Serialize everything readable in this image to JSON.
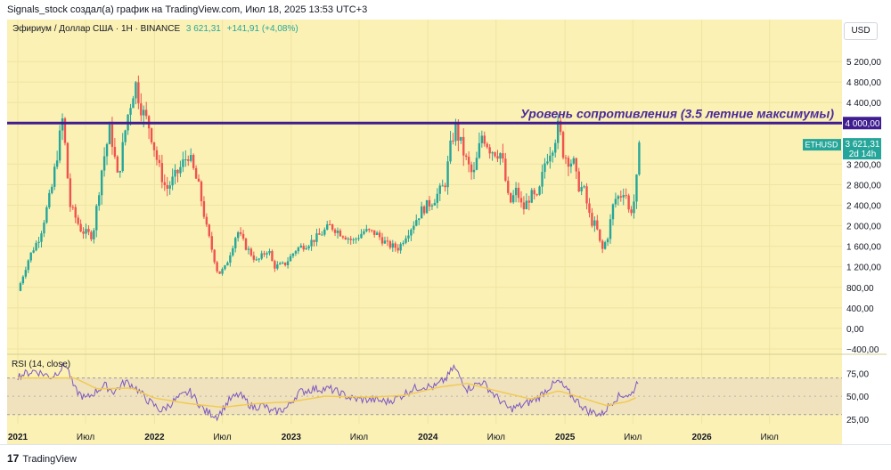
{
  "header": {
    "attribution": "Signals_stock создал(а) график на TradingView.com, Июл 18, 2025 13:53 UTC+3"
  },
  "symbol": {
    "name": "Эфириум / Доллар США · 1Н · BINANCE",
    "price": "3 621,31",
    "change": "+141,91 (+4,08%)"
  },
  "currency_button": "USD",
  "footer": {
    "brand_mark": "17",
    "brand": "TradingView"
  },
  "colors": {
    "background": "#fbf1b5",
    "up": "#26a69a",
    "down": "#ef5350",
    "resistance": "#3f1d8f",
    "rsi_line": "#7e57c2",
    "rsi_ma": "#f2c94c"
  },
  "chart_data": [
    {
      "type": "candlestick",
      "series_name": "ETHUSD",
      "annotation": "Уровень сопротивления (3.5 летние максимумы)",
      "resistance_level": 4000,
      "resistance_label": "4 000,00",
      "last_price_label": "3 621,31",
      "last_price": 3621.31,
      "countdown_label": "2d 14h",
      "ticker_label": "ETHUSD",
      "ylim": [
        -400,
        5600
      ],
      "y_ticks": [
        -400,
        0,
        400,
        800,
        1200,
        1600,
        2000,
        2400,
        2800,
        3200,
        4400,
        4800,
        5200
      ],
      "y_tick_labels": [
        "−400,00",
        "0,00",
        "400,00",
        "800,00",
        "1 200,00",
        "1 600,00",
        "2 000,00",
        "2 400,00",
        "2 800,00",
        "3 200,00",
        "4 400,00",
        "4 800,00",
        "5 200,00"
      ],
      "x_labels": [
        "2021",
        "Июл",
        "2022",
        "Июл",
        "2023",
        "Июл",
        "2024",
        "Июл",
        "2025",
        "Июл",
        "2026",
        "Июл"
      ],
      "x_label_dates": [
        "2021-01-01",
        "2021-07-01",
        "2022-01-01",
        "2022-07-01",
        "2023-01-01",
        "2023-07-01",
        "2024-01-01",
        "2024-07-01",
        "2025-01-01",
        "2025-07-01",
        "2026-01-01",
        "2026-07-01"
      ],
      "xlim": [
        "2021-01-01",
        "2026-12-01"
      ],
      "close_path": [
        [
          "2021-01-01",
          730
        ],
        [
          "2021-02-01",
          1400
        ],
        [
          "2021-03-01",
          1800
        ],
        [
          "2021-04-01",
          2700
        ],
        [
          "2021-05-01",
          4100
        ],
        [
          "2021-05-20",
          2400
        ],
        [
          "2021-06-20",
          1900
        ],
        [
          "2021-07-20",
          1800
        ],
        [
          "2021-08-15",
          3200
        ],
        [
          "2021-09-05",
          3900
        ],
        [
          "2021-09-25",
          2900
        ],
        [
          "2021-10-20",
          4100
        ],
        [
          "2021-11-10",
          4800
        ],
        [
          "2021-12-01",
          4200
        ],
        [
          "2021-12-20",
          3900
        ],
        [
          "2022-01-10",
          3200
        ],
        [
          "2022-02-01",
          2700
        ],
        [
          "2022-03-01",
          3000
        ],
        [
          "2022-04-01",
          3400
        ],
        [
          "2022-05-01",
          2700
        ],
        [
          "2022-05-20",
          1950
        ],
        [
          "2022-06-20",
          1050
        ],
        [
          "2022-07-10",
          1200
        ],
        [
          "2022-08-10",
          1900
        ],
        [
          "2022-09-01",
          1600
        ],
        [
          "2022-10-01",
          1300
        ],
        [
          "2022-11-01",
          1550
        ],
        [
          "2022-11-15",
          1200
        ],
        [
          "2022-12-15",
          1250
        ],
        [
          "2023-01-15",
          1550
        ],
        [
          "2023-02-15",
          1650
        ],
        [
          "2023-03-15",
          1800
        ],
        [
          "2023-04-15",
          2000
        ],
        [
          "2023-05-15",
          1850
        ],
        [
          "2023-06-15",
          1700
        ],
        [
          "2023-07-15",
          1900
        ],
        [
          "2023-08-15",
          1850
        ],
        [
          "2023-09-15",
          1630
        ],
        [
          "2023-10-15",
          1560
        ],
        [
          "2023-11-01",
          1800
        ],
        [
          "2023-11-20",
          2000
        ],
        [
          "2023-12-15",
          2300
        ],
        [
          "2024-01-15",
          2500
        ],
        [
          "2024-02-15",
          2800
        ],
        [
          "2024-03-05",
          3700
        ],
        [
          "2024-03-15",
          3900
        ],
        [
          "2024-04-15",
          3200
        ],
        [
          "2024-05-01",
          2950
        ],
        [
          "2024-05-25",
          3800
        ],
        [
          "2024-06-15",
          3500
        ],
        [
          "2024-07-15",
          3400
        ],
        [
          "2024-08-05",
          2400
        ],
        [
          "2024-08-25",
          2700
        ],
        [
          "2024-09-10",
          2300
        ],
        [
          "2024-10-01",
          2600
        ],
        [
          "2024-10-20",
          2500
        ],
        [
          "2024-11-10",
          3300
        ],
        [
          "2024-11-30",
          3600
        ],
        [
          "2024-12-15",
          3950
        ],
        [
          "2024-12-28",
          3400
        ],
        [
          "2025-01-10",
          3300
        ],
        [
          "2025-01-25",
          3200
        ],
        [
          "2025-02-03",
          2800
        ],
        [
          "2025-02-20",
          2700
        ],
        [
          "2025-03-10",
          2100
        ],
        [
          "2025-03-25",
          2000
        ],
        [
          "2025-04-09",
          1500
        ],
        [
          "2025-04-25",
          1800
        ],
        [
          "2025-05-12",
          2500
        ],
        [
          "2025-05-30",
          2600
        ],
        [
          "2025-06-10",
          2750
        ],
        [
          "2025-06-22",
          2200
        ],
        [
          "2025-07-05",
          2500
        ],
        [
          "2025-07-12",
          2950
        ],
        [
          "2025-07-18",
          3621
        ]
      ]
    },
    {
      "type": "line",
      "title": "RSI (14, close)",
      "ylim": [
        20,
        90
      ],
      "y_ticks": [
        25,
        50,
        75
      ],
      "y_tick_labels": [
        "25,00",
        "50,00",
        "75,00"
      ],
      "bands": [
        30,
        70
      ],
      "series": [
        {
          "name": "RSI",
          "points": [
            [
              "2021-01-01",
              72
            ],
            [
              "2021-02-15",
              78
            ],
            [
              "2021-04-01",
              71
            ],
            [
              "2021-05-10",
              85
            ],
            [
              "2021-06-01",
              58
            ],
            [
              "2021-07-01",
              47
            ],
            [
              "2021-08-20",
              62
            ],
            [
              "2021-09-15",
              55
            ],
            [
              "2021-10-15",
              66
            ],
            [
              "2021-11-10",
              60
            ],
            [
              "2021-12-15",
              45
            ],
            [
              "2022-01-20",
              34
            ],
            [
              "2022-03-01",
              47
            ],
            [
              "2022-04-05",
              55
            ],
            [
              "2022-05-15",
              34
            ],
            [
              "2022-06-18",
              28
            ],
            [
              "2022-07-20",
              46
            ],
            [
              "2022-08-15",
              52
            ],
            [
              "2022-09-20",
              38
            ],
            [
              "2022-10-20",
              40
            ],
            [
              "2022-11-10",
              32
            ],
            [
              "2022-12-20",
              37
            ],
            [
              "2023-01-20",
              54
            ],
            [
              "2023-03-01",
              58
            ],
            [
              "2023-04-15",
              58
            ],
            [
              "2023-06-15",
              47
            ],
            [
              "2023-08-10",
              46
            ],
            [
              "2023-09-15",
              44
            ],
            [
              "2023-10-20",
              50
            ],
            [
              "2023-11-20",
              58
            ],
            [
              "2023-12-20",
              61
            ],
            [
              "2024-01-20",
              60
            ],
            [
              "2024-02-20",
              70
            ],
            [
              "2024-03-10",
              82
            ],
            [
              "2024-04-15",
              58
            ],
            [
              "2024-05-25",
              66
            ],
            [
              "2024-06-25",
              52
            ],
            [
              "2024-08-05",
              36
            ],
            [
              "2024-09-10",
              40
            ],
            [
              "2024-10-20",
              48
            ],
            [
              "2024-11-20",
              60
            ],
            [
              "2024-12-15",
              66
            ],
            [
              "2025-01-20",
              50
            ],
            [
              "2025-03-01",
              34
            ],
            [
              "2025-04-09",
              30
            ],
            [
              "2025-05-15",
              48
            ],
            [
              "2025-06-10",
              52
            ],
            [
              "2025-06-25",
              50
            ],
            [
              "2025-07-18",
              70
            ]
          ]
        },
        {
          "name": "RSI MA",
          "points": [
            [
              "2021-01-01",
              70
            ],
            [
              "2021-06-01",
              70
            ],
            [
              "2021-08-01",
              58
            ],
            [
              "2021-11-01",
              59
            ],
            [
              "2022-01-01",
              48
            ],
            [
              "2022-04-01",
              42
            ],
            [
              "2022-07-01",
              38
            ],
            [
              "2022-10-01",
              42
            ],
            [
              "2023-01-01",
              44
            ],
            [
              "2023-04-01",
              50
            ],
            [
              "2023-08-01",
              49
            ],
            [
              "2023-11-01",
              51
            ],
            [
              "2024-02-01",
              60
            ],
            [
              "2024-04-15",
              64
            ],
            [
              "2024-07-01",
              56
            ],
            [
              "2024-10-01",
              47
            ],
            [
              "2024-12-15",
              56
            ],
            [
              "2025-02-01",
              50
            ],
            [
              "2025-04-20",
              40
            ],
            [
              "2025-06-15",
              44
            ],
            [
              "2025-07-18",
              50
            ]
          ]
        }
      ]
    }
  ]
}
